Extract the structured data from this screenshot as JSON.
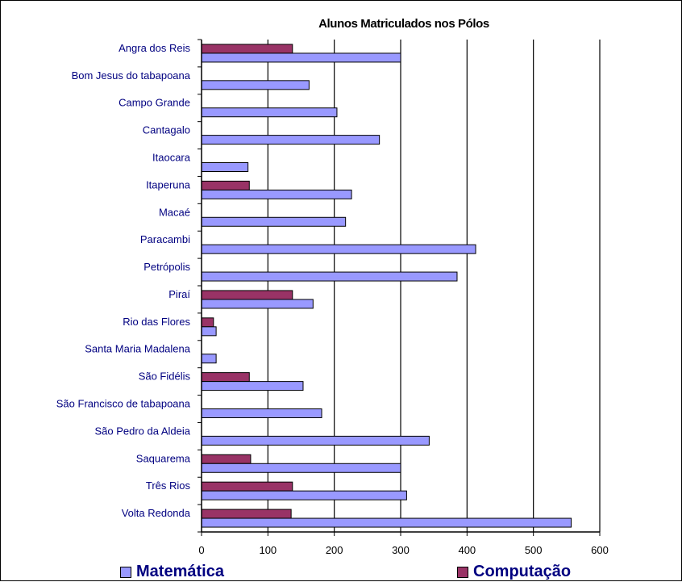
{
  "chart_data": {
    "type": "bar",
    "orientation": "horizontal",
    "title": "Alunos Matriculados nos Pólos",
    "xlabel": "",
    "ylabel": "",
    "xlim": [
      0,
      600
    ],
    "xticks": [
      "0",
      "100",
      "200",
      "300",
      "400",
      "500",
      "600"
    ],
    "grid": true,
    "legend_position": "bottom",
    "categories": [
      "Angra dos Reis",
      "Bom Jesus do tabapoana",
      "Campo Grande",
      "Cantagalo",
      "Itaocara",
      "Itaperuna",
      "Macaé",
      "Paracambi",
      "Petrópolis",
      "Piraí",
      "Rio das Flores",
      "Santa Maria Madalena",
      "São Fidélis",
      "São Francisco de tabapoana",
      "São Pedro da Aldeia",
      "Saquarema",
      "Três Rios",
      "Volta Redonda"
    ],
    "series": [
      {
        "name": "Computação",
        "color": "#993366",
        "values": [
          137,
          0,
          0,
          0,
          0,
          72,
          0,
          0,
          0,
          137,
          18,
          0,
          72,
          0,
          0,
          74,
          137,
          135
        ]
      },
      {
        "name": "Matemática",
        "color": "#9999ff",
        "values": [
          300,
          162,
          204,
          268,
          70,
          226,
          217,
          413,
          385,
          168,
          22,
          22,
          153,
          181,
          343,
          300,
          309,
          557
        ]
      }
    ]
  }
}
